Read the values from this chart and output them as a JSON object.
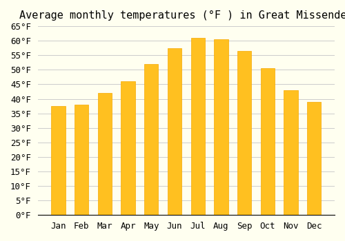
{
  "title": "Average monthly temperatures (°F ) in Great Missenden",
  "months": [
    "Jan",
    "Feb",
    "Mar",
    "Apr",
    "May",
    "Jun",
    "Jul",
    "Aug",
    "Sep",
    "Oct",
    "Nov",
    "Dec"
  ],
  "values": [
    37.5,
    38.0,
    42.0,
    46.0,
    52.0,
    57.5,
    61.0,
    60.5,
    56.5,
    50.5,
    43.0,
    39.0
  ],
  "bar_color_face": "#FFC020",
  "bar_color_edge": "#F5A800",
  "ylim": [
    0,
    65
  ],
  "yticks": [
    0,
    5,
    10,
    15,
    20,
    25,
    30,
    35,
    40,
    45,
    50,
    55,
    60,
    65
  ],
  "background_color": "#FFFFF0",
  "grid_color": "#CCCCCC",
  "title_fontsize": 11,
  "tick_fontsize": 9,
  "font_family": "monospace"
}
